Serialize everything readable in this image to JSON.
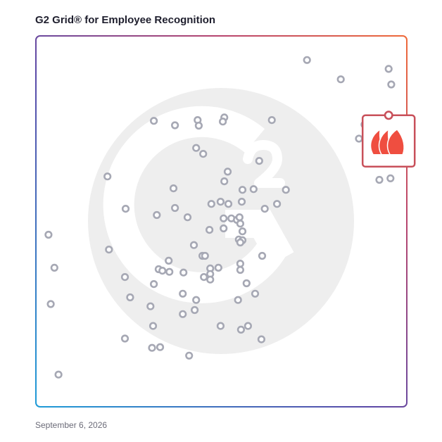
{
  "chart_data": {
    "type": "scatter",
    "title": "G2 Grid® for Employee Recognition",
    "date": "September 6, 2026",
    "xlabel": "",
    "ylabel": "",
    "xlim": [
      0,
      100
    ],
    "ylim": [
      0,
      100
    ],
    "grid": "quadrant",
    "colors": {
      "point": "#a6a8b4",
      "highlight": "#c8505a",
      "logo": "#ef4e40",
      "watermark": "#eeeeee"
    },
    "highlight": {
      "x": 95.1,
      "y": 78.6,
      "icon": "tulip-logo-icon"
    },
    "points": [
      {
        "x": 73.1,
        "y": 93.5
      },
      {
        "x": 82.2,
        "y": 88.3
      },
      {
        "x": 95.1,
        "y": 91.1
      },
      {
        "x": 95.8,
        "y": 86.9
      },
      {
        "x": 87.1,
        "y": 72.3
      },
      {
        "x": 91.1,
        "y": 66.7
      },
      {
        "x": 88.6,
        "y": 76.1
      },
      {
        "x": 92.6,
        "y": 61.2
      },
      {
        "x": 95.6,
        "y": 61.6
      },
      {
        "x": 43.6,
        "y": 77.3
      },
      {
        "x": 43.9,
        "y": 75.8
      },
      {
        "x": 50.8,
        "y": 78.0
      },
      {
        "x": 50.4,
        "y": 76.9
      },
      {
        "x": 63.6,
        "y": 77.3
      },
      {
        "x": 31.8,
        "y": 77.1
      },
      {
        "x": 37.5,
        "y": 75.9
      },
      {
        "x": 43.2,
        "y": 69.8
      },
      {
        "x": 45.1,
        "y": 68.2
      },
      {
        "x": 60.2,
        "y": 66.3
      },
      {
        "x": 51.7,
        "y": 63.4
      },
      {
        "x": 19.3,
        "y": 62.1
      },
      {
        "x": 37.1,
        "y": 58.9
      },
      {
        "x": 50.8,
        "y": 60.8
      },
      {
        "x": 55.7,
        "y": 58.5
      },
      {
        "x": 58.7,
        "y": 58.7
      },
      {
        "x": 67.4,
        "y": 58.5
      },
      {
        "x": 49.8,
        "y": 55.3
      },
      {
        "x": 47.3,
        "y": 54.7
      },
      {
        "x": 51.9,
        "y": 54.7
      },
      {
        "x": 55.5,
        "y": 55.3
      },
      {
        "x": 65.0,
        "y": 54.7
      },
      {
        "x": 24.2,
        "y": 53.4
      },
      {
        "x": 37.5,
        "y": 53.6
      },
      {
        "x": 61.7,
        "y": 53.4
      },
      {
        "x": 32.6,
        "y": 51.7
      },
      {
        "x": 40.9,
        "y": 51.1
      },
      {
        "x": 50.6,
        "y": 50.8
      },
      {
        "x": 52.7,
        "y": 50.8
      },
      {
        "x": 54.2,
        "y": 50.4
      },
      {
        "x": 54.9,
        "y": 51.1
      },
      {
        "x": 55.1,
        "y": 49.4
      },
      {
        "x": 46.8,
        "y": 47.7
      },
      {
        "x": 50.6,
        "y": 48.1
      },
      {
        "x": 55.7,
        "y": 47.3
      },
      {
        "x": 3.4,
        "y": 46.4
      },
      {
        "x": 42.6,
        "y": 43.6
      },
      {
        "x": 54.7,
        "y": 45.1
      },
      {
        "x": 55.7,
        "y": 44.9
      },
      {
        "x": 55.1,
        "y": 44.3
      },
      {
        "x": 19.7,
        "y": 42.4
      },
      {
        "x": 44.9,
        "y": 40.7
      },
      {
        "x": 45.6,
        "y": 40.7
      },
      {
        "x": 61.0,
        "y": 40.7
      },
      {
        "x": 35.8,
        "y": 39.4
      },
      {
        "x": 5.0,
        "y": 37.5
      },
      {
        "x": 33.1,
        "y": 37.1
      },
      {
        "x": 34.1,
        "y": 36.7
      },
      {
        "x": 36.0,
        "y": 36.4
      },
      {
        "x": 39.8,
        "y": 36.2
      },
      {
        "x": 47.0,
        "y": 37.3
      },
      {
        "x": 49.2,
        "y": 37.5
      },
      {
        "x": 55.1,
        "y": 38.6
      },
      {
        "x": 55.1,
        "y": 36.9
      },
      {
        "x": 47.0,
        "y": 35.8
      },
      {
        "x": 45.3,
        "y": 35.0
      },
      {
        "x": 47.0,
        "y": 34.3
      },
      {
        "x": 24.0,
        "y": 35.0
      },
      {
        "x": 31.8,
        "y": 33.1
      },
      {
        "x": 56.8,
        "y": 33.3
      },
      {
        "x": 39.6,
        "y": 30.5
      },
      {
        "x": 59.1,
        "y": 30.5
      },
      {
        "x": 25.4,
        "y": 29.5
      },
      {
        "x": 43.2,
        "y": 28.8
      },
      {
        "x": 54.5,
        "y": 28.8
      },
      {
        "x": 4.0,
        "y": 27.7
      },
      {
        "x": 30.9,
        "y": 27.1
      },
      {
        "x": 42.8,
        "y": 26.1
      },
      {
        "x": 39.6,
        "y": 25.0
      },
      {
        "x": 31.6,
        "y": 21.8
      },
      {
        "x": 49.8,
        "y": 21.8
      },
      {
        "x": 55.3,
        "y": 20.8
      },
      {
        "x": 57.2,
        "y": 21.8
      },
      {
        "x": 24.0,
        "y": 18.4
      },
      {
        "x": 60.8,
        "y": 18.2
      },
      {
        "x": 31.3,
        "y": 15.9
      },
      {
        "x": 33.5,
        "y": 16.1
      },
      {
        "x": 41.3,
        "y": 13.8
      },
      {
        "x": 6.1,
        "y": 8.7
      }
    ]
  }
}
